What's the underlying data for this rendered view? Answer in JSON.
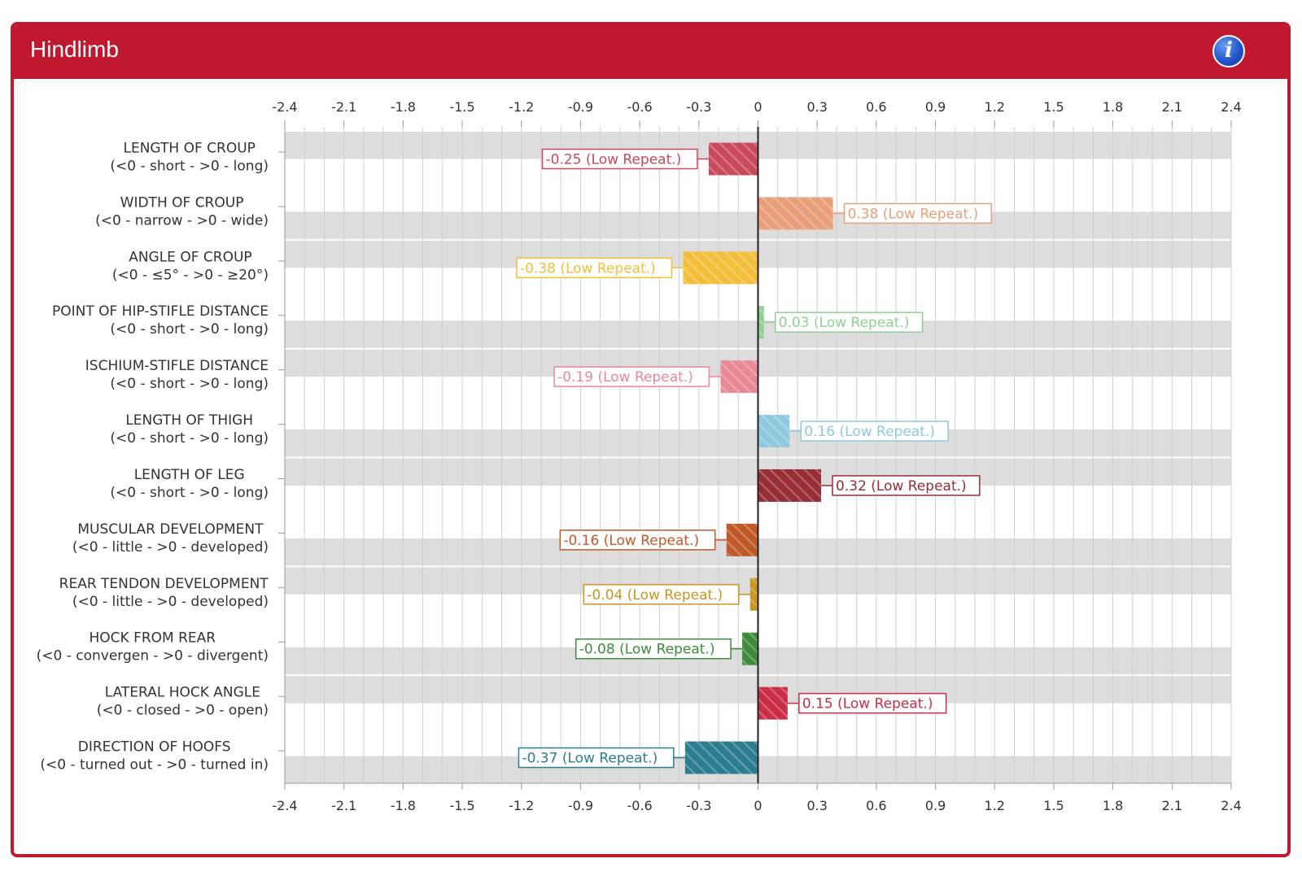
{
  "panel": {
    "title": "Hindlimb",
    "info_icon": "info-icon",
    "header_color": "#c0182f"
  },
  "chart_data": {
    "type": "bar",
    "orientation": "horizontal",
    "title": "Hindlimb",
    "xlim": [
      -2.4,
      2.4
    ],
    "ticks": [
      "-2.4",
      "-2.1",
      "-1.8",
      "-1.5",
      "-1.2",
      "-0.9",
      "-0.6",
      "-0.3",
      "0",
      "0.3",
      "0.6",
      "0.9",
      "1.2",
      "1.5",
      "1.8",
      "2.1",
      "2.4"
    ],
    "tick_values": [
      -2.4,
      -2.1,
      -1.8,
      -1.5,
      -1.2,
      -0.9,
      -0.6,
      -0.3,
      0,
      0.3,
      0.6,
      0.9,
      1.2,
      1.5,
      1.8,
      2.1,
      2.4
    ],
    "grid": true,
    "bar_pattern": "diagonal-hatch",
    "categories": [
      {
        "name": "LENGTH OF CROUP",
        "range": "(<0 - short - >0 - long)",
        "value": -0.25,
        "label": "-0.25 (Low Repeat.)",
        "color": "#c94a5a"
      },
      {
        "name": "WIDTH OF CROUP",
        "range": "(<0 - narrow - >0 - wide)",
        "value": 0.38,
        "label": "0.38 (Low Repeat.)",
        "color": "#e9a07a"
      },
      {
        "name": "ANGLE OF CROUP",
        "range": "(<0 - ≤5° - >0 - ≥20°)",
        "value": -0.38,
        "label": "-0.38 (Low Repeat.)",
        "color": "#f2bf3a"
      },
      {
        "name": "POINT OF HIP-STIFLE DISTANCE",
        "range": "(<0 - short - >0 - long)",
        "value": 0.03,
        "label": "0.03 (Low Repeat.)",
        "color": "#8fcf8f"
      },
      {
        "name": "ISCHIUM-STIFLE DISTANCE",
        "range": "(<0 - short - >0 - long)",
        "value": -0.19,
        "label": "-0.19 (Low Repeat.)",
        "color": "#e88a96"
      },
      {
        "name": "LENGTH OF THIGH",
        "range": "(<0 - short - >0 - long)",
        "value": 0.16,
        "label": "0.16 (Low Repeat.)",
        "color": "#8ec9de"
      },
      {
        "name": "LENGTH OF LEG",
        "range": "(<0 - short - >0 - long)",
        "value": 0.32,
        "label": "0.32 (Low Repeat.)",
        "color": "#972e36"
      },
      {
        "name": "MUSCULAR DEVELOPMENT",
        "range": "(<0 - little - >0 - developed)",
        "value": -0.16,
        "label": "-0.16 (Low Repeat.)",
        "color": "#c05a28"
      },
      {
        "name": "REAR TENDON DEVELOPMENT",
        "range": "(<0 - little - >0 - developed)",
        "value": -0.04,
        "label": "-0.04 (Low Repeat.)",
        "color": "#c9961e"
      },
      {
        "name": "HOCK FROM REAR",
        "range": "(<0 - convergen - >0 - divergent)",
        "value": -0.08,
        "label": "-0.08 (Low Repeat.)",
        "color": "#3d8b3d"
      },
      {
        "name": "LATERAL HOCK ANGLE",
        "range": "(<0 - closed - >0 - open)",
        "value": 0.15,
        "label": "0.15 (Low Repeat.)",
        "color": "#c92e46"
      },
      {
        "name": "DIRECTION OF HOOFS",
        "range": "(<0 - turned out - >0 - turned in)",
        "value": -0.37,
        "label": "-0.37 (Low Repeat.)",
        "color": "#2d7d92"
      }
    ]
  }
}
